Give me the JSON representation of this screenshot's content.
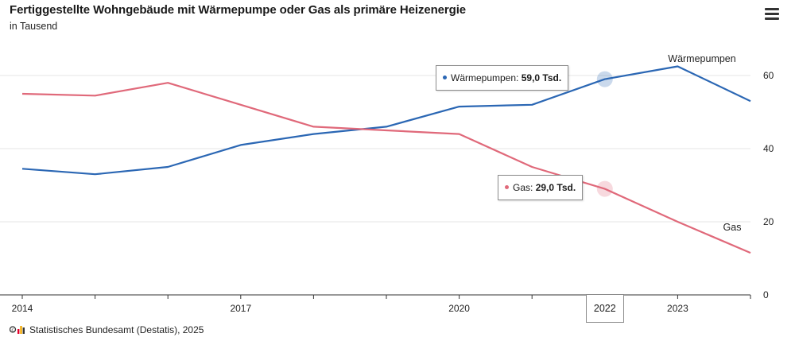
{
  "header": {
    "title": "Fertiggestellte Wohngebäude mit Wärmepumpe oder Gas als primäre Heizenergie",
    "subtitle": "in Tausend",
    "menu_icon": "hamburger-menu-icon"
  },
  "footer": {
    "source": "Statistisches Bundesamt (Destatis), 2025"
  },
  "colors": {
    "waermepumpen": "#2b67b4",
    "gas": "#e0697a",
    "grid": "#e6e6e6"
  },
  "tooltips": {
    "waermepumpen": {
      "label": "Wärmepumpen:",
      "value": "59,0 Tsd."
    },
    "gas": {
      "label": "Gas:",
      "value": "29,0 Tsd."
    },
    "x_label": "2022"
  },
  "chart_data": {
    "type": "line",
    "x": [
      2014,
      2015,
      2016,
      2017,
      2018,
      2019,
      2020,
      2021,
      2022,
      2023,
      2024
    ],
    "xticks": [
      "2014",
      "2017",
      "2020",
      "2023"
    ],
    "yticks": [
      "0",
      "20",
      "40",
      "60"
    ],
    "ylim": [
      0,
      65
    ],
    "grid": true,
    "series": [
      {
        "name": "Wärmepumpen",
        "values": [
          34.5,
          33.0,
          35.0,
          41.0,
          44.0,
          46.0,
          51.5,
          52.0,
          59.0,
          62.5,
          53.0
        ]
      },
      {
        "name": "Gas",
        "values": [
          55.0,
          54.5,
          58.0,
          52.0,
          46.0,
          45.0,
          44.0,
          35.0,
          29.0,
          20.0,
          11.5
        ]
      }
    ]
  }
}
